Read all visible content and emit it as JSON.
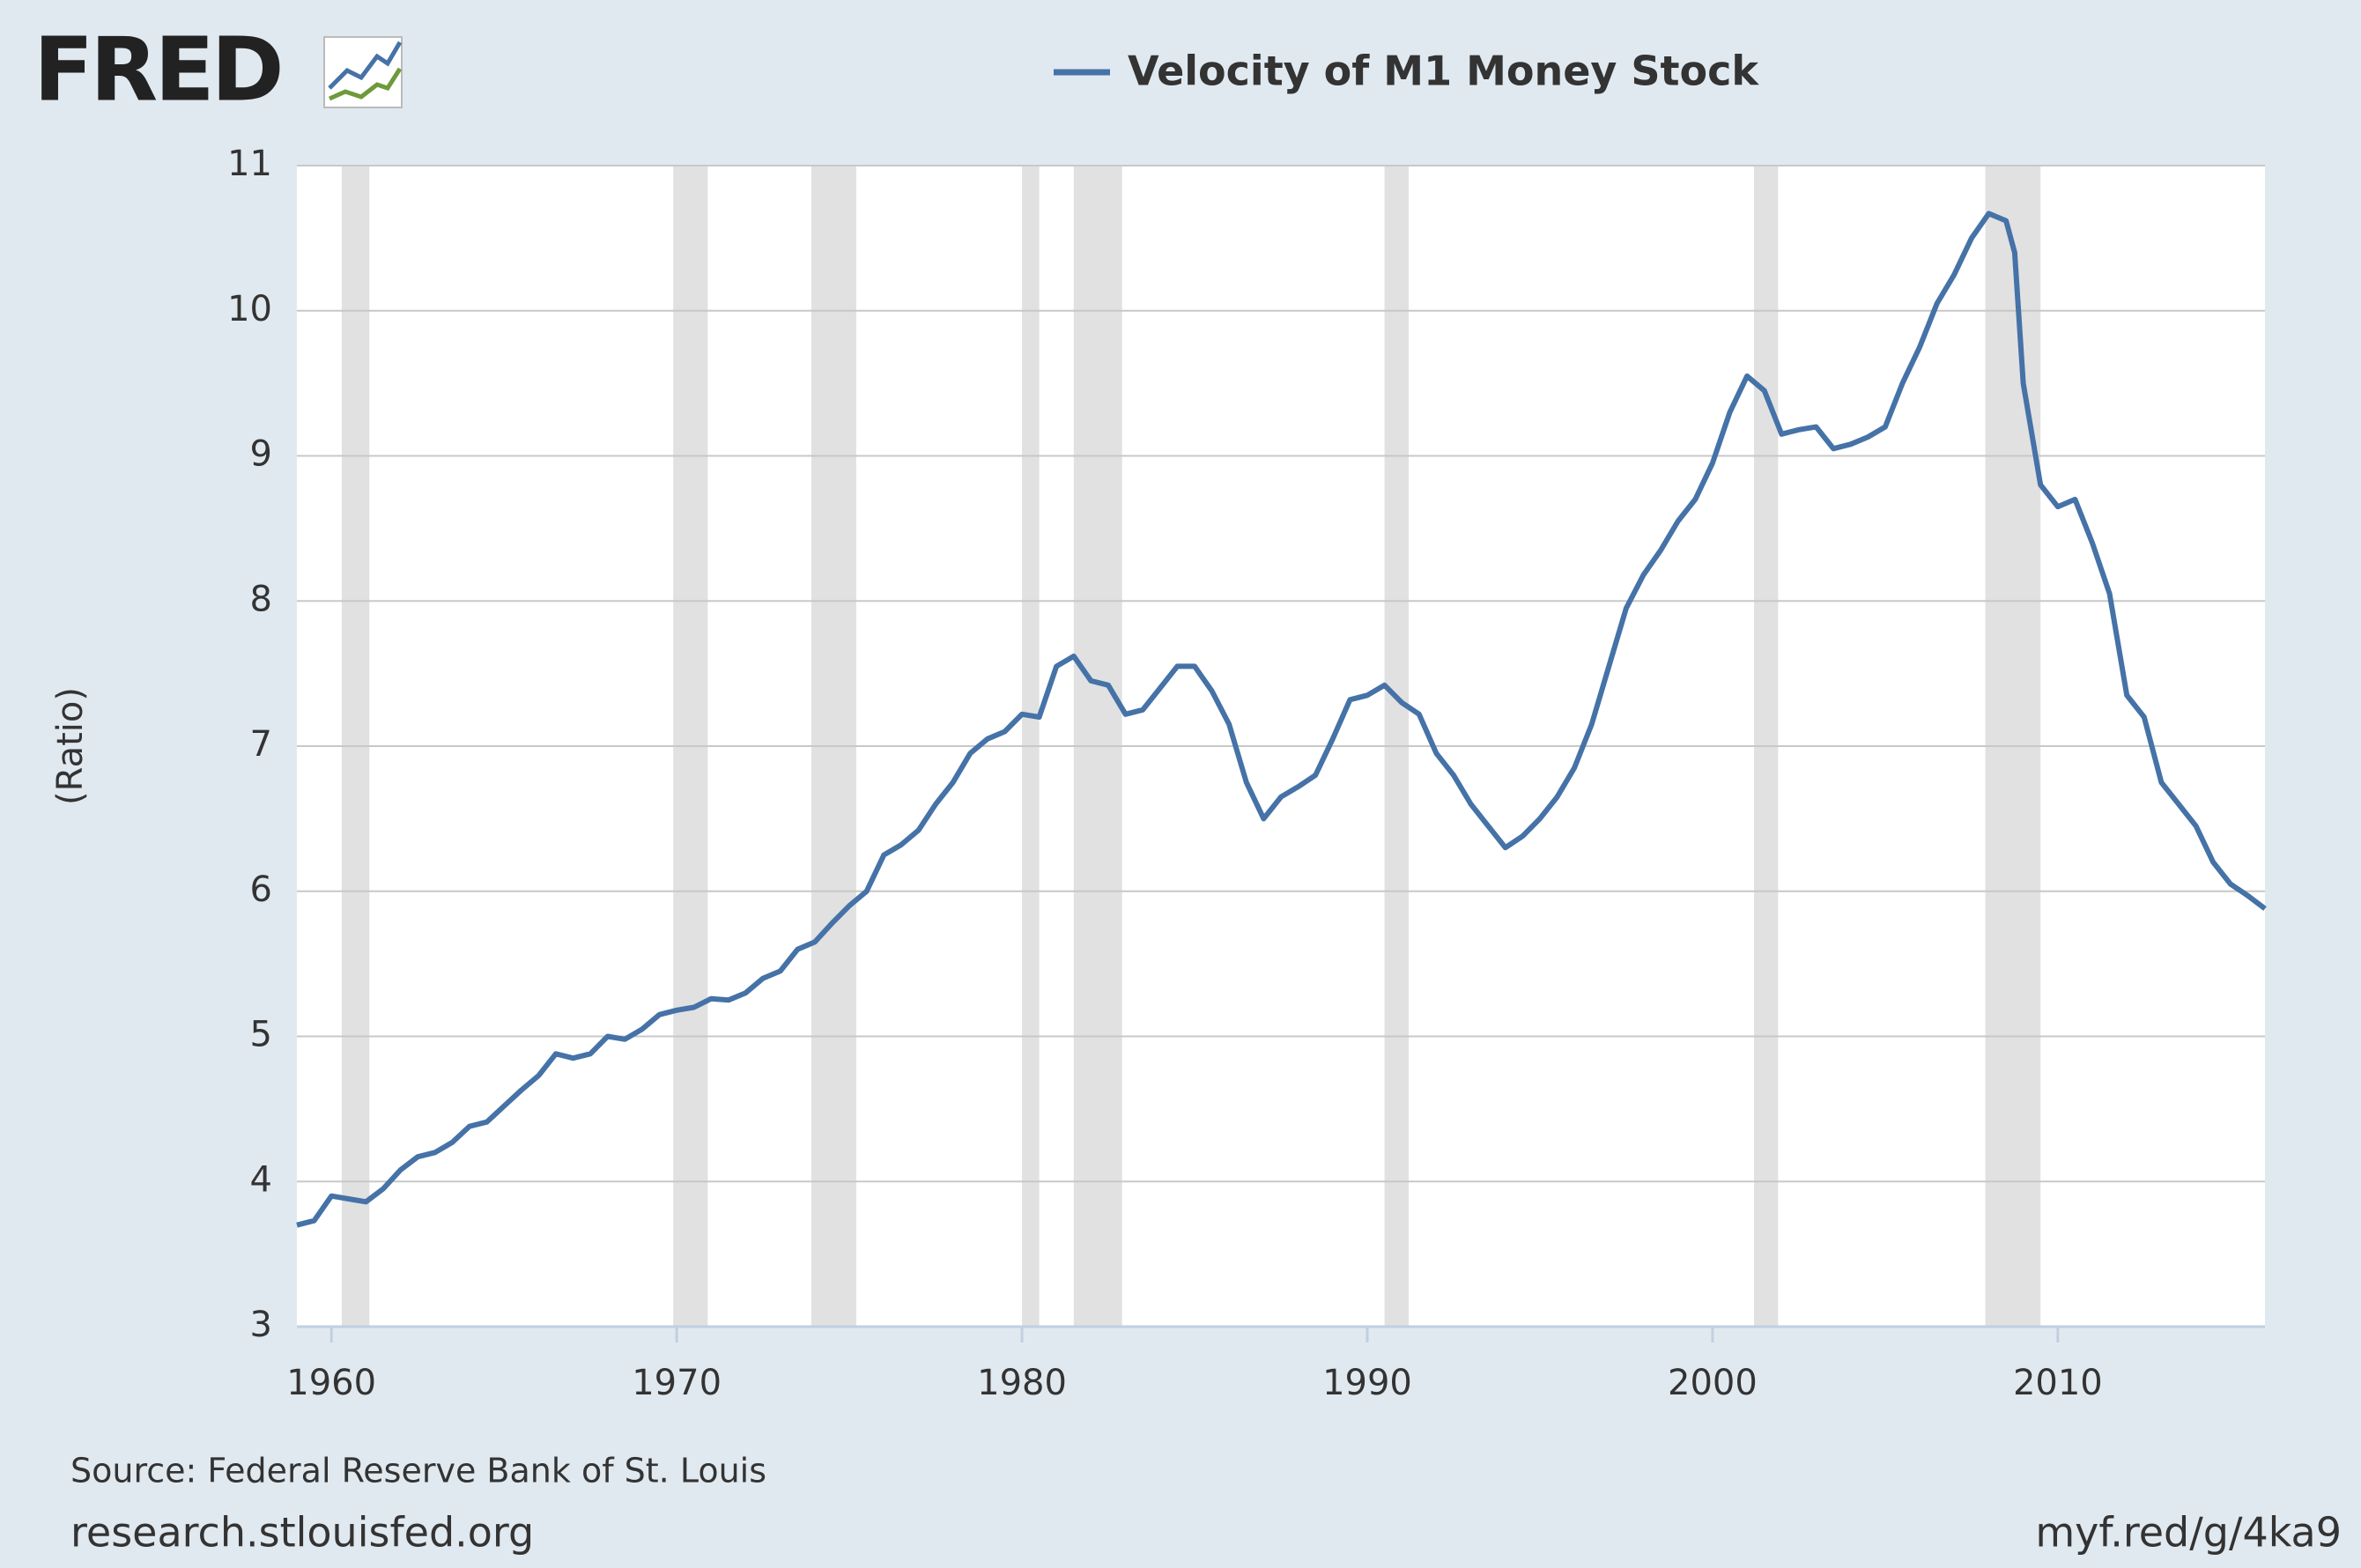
{
  "logo": "FRED",
  "source": "Source: Federal Reserve Bank of St. Louis",
  "site": "research.stlouisfed.org",
  "link": "myf.red/g/4ka9",
  "chart_data": {
    "type": "line",
    "ylabel": "(Ratio)",
    "xlim": [
      1959,
      2016
    ],
    "xticks": [
      1960,
      1970,
      1980,
      1990,
      2000,
      2010
    ],
    "ylim": [
      3,
      11
    ],
    "yticks": [
      3,
      4,
      5,
      6,
      7,
      8,
      9,
      10,
      11
    ],
    "grid": true,
    "recessions": [
      [
        1960.3,
        1961.1
      ],
      [
        1969.9,
        1970.9
      ],
      [
        1973.9,
        1975.2
      ],
      [
        1980.0,
        1980.5
      ],
      [
        1981.5,
        1982.9
      ],
      [
        1990.5,
        1991.2
      ],
      [
        2001.2,
        2001.9
      ],
      [
        2007.9,
        2009.5
      ]
    ],
    "x": [
      1959.0,
      1959.5,
      1960.0,
      1960.5,
      1961.0,
      1961.5,
      1962.0,
      1962.5,
      1963.0,
      1963.5,
      1964.0,
      1964.5,
      1965.0,
      1965.5,
      1966.0,
      1966.5,
      1967.0,
      1967.5,
      1968.0,
      1968.5,
      1969.0,
      1969.5,
      1970.0,
      1970.5,
      1971.0,
      1971.5,
      1972.0,
      1972.5,
      1973.0,
      1973.5,
      1974.0,
      1974.5,
      1975.0,
      1975.5,
      1976.0,
      1976.5,
      1977.0,
      1977.5,
      1978.0,
      1978.5,
      1979.0,
      1979.5,
      1980.0,
      1980.5,
      1981.0,
      1981.5,
      1982.0,
      1982.5,
      1983.0,
      1983.5,
      1984.0,
      1984.5,
      1985.0,
      1985.5,
      1986.0,
      1986.5,
      1987.0,
      1987.5,
      1988.0,
      1988.5,
      1989.0,
      1989.5,
      1990.0,
      1990.5,
      1991.0,
      1991.5,
      1992.0,
      1992.5,
      1993.0,
      1993.5,
      1994.0,
      1994.5,
      1995.0,
      1995.5,
      1996.0,
      1996.5,
      1997.0,
      1997.5,
      1998.0,
      1998.5,
      1999.0,
      1999.5,
      2000.0,
      2000.5,
      2001.0,
      2001.5,
      2002.0,
      2002.5,
      2003.0,
      2003.5,
      2004.0,
      2004.5,
      2005.0,
      2005.5,
      2006.0,
      2006.5,
      2007.0,
      2007.5,
      2008.0,
      2008.5,
      2008.75,
      2009.0,
      2009.5,
      2010.0,
      2010.5,
      2011.0,
      2011.5,
      2012.0,
      2012.5,
      2013.0,
      2013.5,
      2014.0,
      2014.5,
      2015.0,
      2015.5,
      2016.0
    ],
    "series": [
      {
        "name": "Velocity of M1 Money Stock",
        "color": "#4572a7",
        "values": [
          3.7,
          3.73,
          3.9,
          3.88,
          3.86,
          3.95,
          4.08,
          4.17,
          4.2,
          4.27,
          4.38,
          4.41,
          4.52,
          4.63,
          4.73,
          4.88,
          4.85,
          4.88,
          5.0,
          4.98,
          5.05,
          5.15,
          5.18,
          5.2,
          5.26,
          5.25,
          5.3,
          5.4,
          5.45,
          5.6,
          5.65,
          5.78,
          5.9,
          6.0,
          6.25,
          6.32,
          6.42,
          6.6,
          6.75,
          6.95,
          7.05,
          7.1,
          7.22,
          7.2,
          7.55,
          7.62,
          7.45,
          7.42,
          7.22,
          7.25,
          7.4,
          7.55,
          7.55,
          7.38,
          7.15,
          6.75,
          6.5,
          6.65,
          6.72,
          6.8,
          7.05,
          7.32,
          7.35,
          7.42,
          7.3,
          7.22,
          6.95,
          6.8,
          6.6,
          6.45,
          6.3,
          6.38,
          6.5,
          6.65,
          6.85,
          7.15,
          7.55,
          7.95,
          8.18,
          8.35,
          8.55,
          8.7,
          8.95,
          9.3,
          9.55,
          9.45,
          9.15,
          9.18,
          9.2,
          9.05,
          9.08,
          9.13,
          9.2,
          9.5,
          9.75,
          10.05,
          10.25,
          10.5,
          10.67,
          10.62,
          10.4,
          9.5,
          8.8,
          8.65,
          8.7,
          8.4,
          8.05,
          7.35,
          7.2,
          6.75,
          6.6,
          6.45,
          6.2,
          6.05,
          5.97,
          5.88
        ]
      }
    ]
  }
}
